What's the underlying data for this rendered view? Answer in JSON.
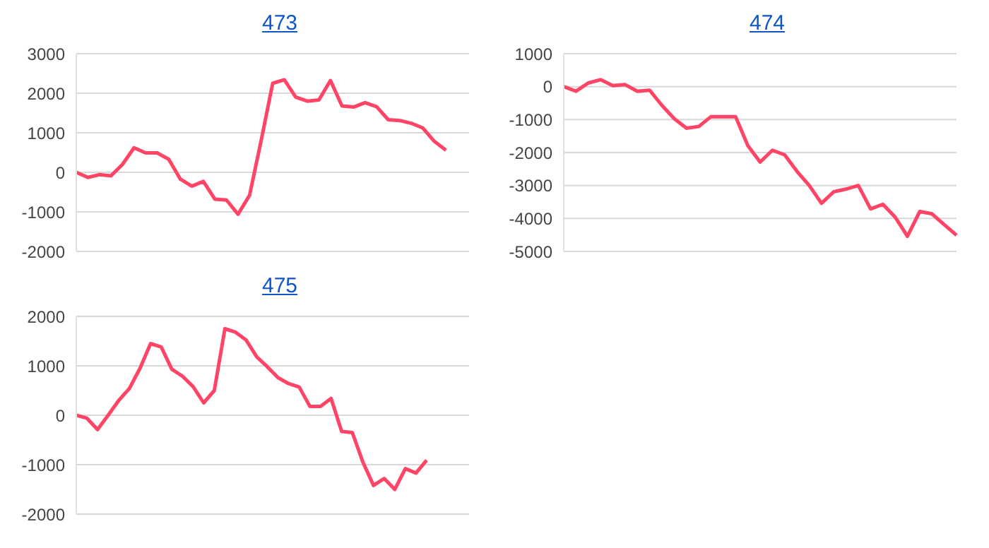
{
  "chart_data": [
    {
      "type": "line",
      "title": "473",
      "color": "#ff4466",
      "grid": "y",
      "tick_labels": "y",
      "marker": "none",
      "ylim": [
        -2000,
        3000
      ],
      "yticks": [
        -2000,
        -1000,
        0,
        1000,
        2000,
        3000
      ],
      "categories": [
        null,
        null,
        null,
        null,
        null,
        null,
        null,
        null,
        null,
        null,
        null,
        null,
        null,
        null,
        null,
        null,
        null,
        null,
        null,
        null,
        null,
        null,
        null,
        null,
        null,
        null,
        null,
        null,
        null,
        null,
        null,
        null,
        null,
        null,
        null
      ],
      "values": [
        0,
        -130,
        -60,
        -90,
        200,
        620,
        490,
        490,
        330,
        -170,
        -350,
        -230,
        -680,
        -700,
        -1060,
        -580,
        800,
        2250,
        2340,
        1900,
        1800,
        1830,
        2320,
        1680,
        1650,
        1760,
        1660,
        1330,
        1310,
        1240,
        1120,
        780,
        560,
        null,
        null
      ]
    },
    {
      "type": "line",
      "title": "474",
      "color": "#ff4466",
      "grid": "y",
      "tick_labels": "y",
      "marker": "none",
      "ylim": [
        -5000,
        1000
      ],
      "yticks": [
        -5000,
        -4000,
        -3000,
        -2000,
        -1000,
        0,
        1000
      ],
      "categories": [
        null,
        null,
        null,
        null,
        null,
        null,
        null,
        null,
        null,
        null,
        null,
        null,
        null,
        null,
        null,
        null,
        null,
        null,
        null,
        null,
        null,
        null,
        null,
        null,
        null,
        null,
        null,
        null,
        null,
        null,
        null,
        null,
        null
      ],
      "values": [
        0,
        -140,
        110,
        210,
        30,
        60,
        -140,
        -110,
        -570,
        -970,
        -1260,
        -1210,
        -910,
        -910,
        -910,
        -1790,
        -2290,
        -1930,
        -2070,
        -2570,
        -3000,
        -3540,
        -3190,
        -3110,
        -3000,
        -3710,
        -3570,
        -3960,
        -4540,
        -3790,
        -3860,
        -4190,
        -4510
      ]
    },
    {
      "type": "line",
      "title": "475",
      "color": "#ff4466",
      "grid": "y",
      "tick_labels": "y",
      "marker": "none",
      "ylim": [
        -2000,
        2000
      ],
      "yticks": [
        -2000,
        -1000,
        0,
        1000,
        2000
      ],
      "categories": [
        null,
        null,
        null,
        null,
        null,
        null,
        null,
        null,
        null,
        null,
        null,
        null,
        null,
        null,
        null,
        null,
        null,
        null,
        null,
        null,
        null,
        null,
        null,
        null,
        null,
        null,
        null,
        null,
        null,
        null,
        null,
        null,
        null,
        null,
        null,
        null,
        null,
        null
      ],
      "values": [
        0,
        -60,
        -290,
        0,
        300,
        540,
        950,
        1450,
        1380,
        930,
        790,
        580,
        250,
        500,
        1750,
        1680,
        1520,
        1180,
        980,
        760,
        640,
        570,
        180,
        180,
        340,
        -330,
        -350,
        -950,
        -1420,
        -1280,
        -1500,
        -1080,
        -1170,
        -910,
        null,
        null,
        null,
        null
      ]
    }
  ]
}
